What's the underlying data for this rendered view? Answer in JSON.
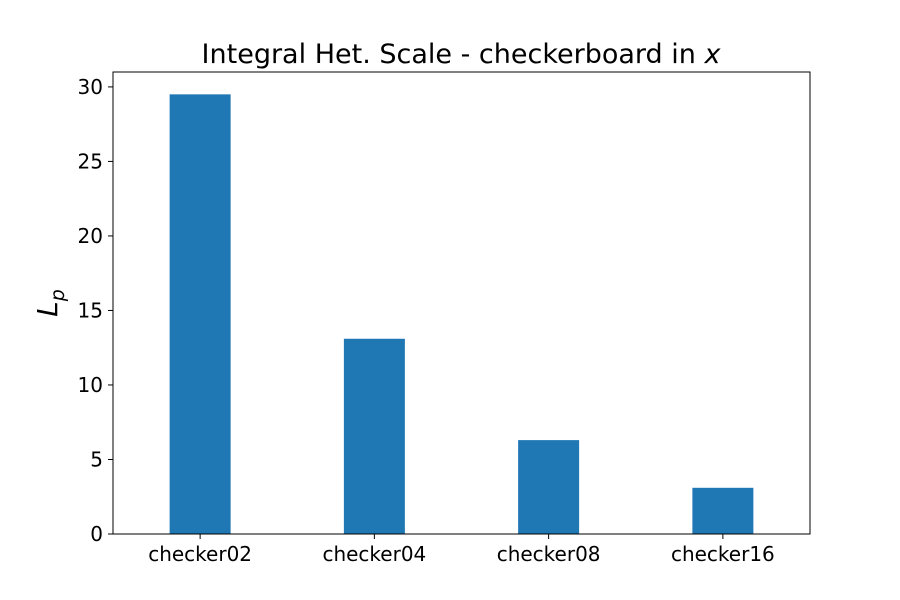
{
  "chart_data": {
    "type": "bar",
    "title": "Integral Het. Scale - checkerboard in ",
    "title_math_var": "x",
    "xlabel": "",
    "ylabel_main": "L",
    "ylabel_sub": "p",
    "categories": [
      "checker02",
      "checker04",
      "checker08",
      "checker16"
    ],
    "values": [
      29.5,
      13.1,
      6.3,
      3.1
    ],
    "ylim": [
      0,
      31
    ],
    "yticks": [
      0,
      5,
      10,
      15,
      20,
      25,
      30
    ],
    "grid": false,
    "colors": {
      "bar": "#1f77b4",
      "axis": "#000000",
      "background": "#ffffff"
    }
  }
}
